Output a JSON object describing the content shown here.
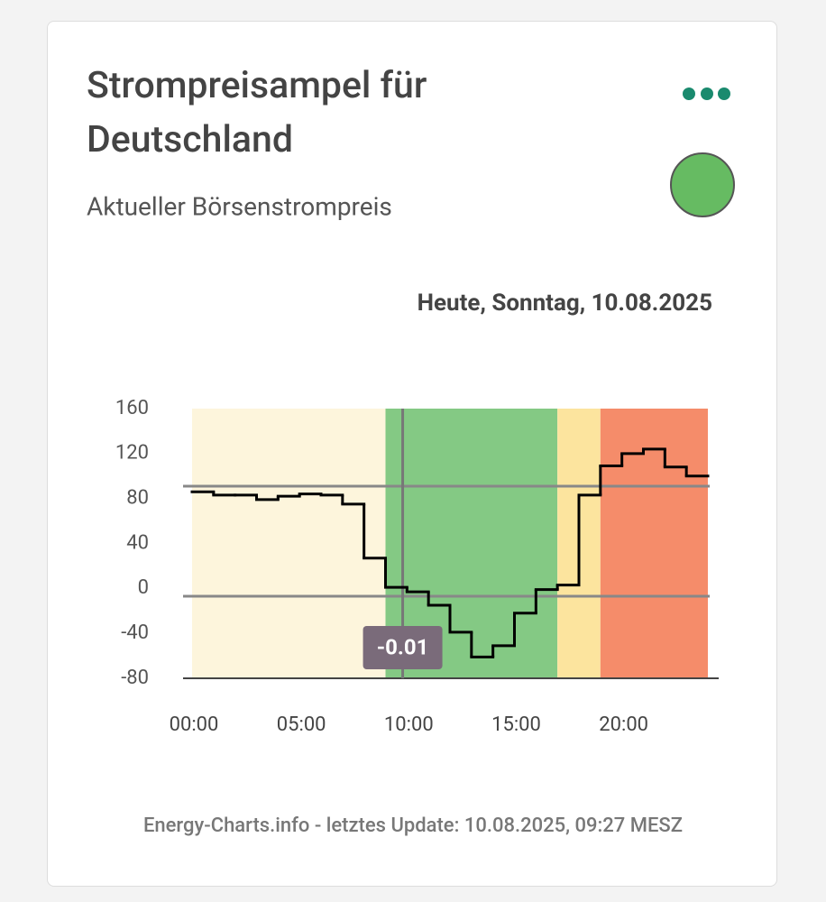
{
  "card": {
    "title_line1": "Strompreisampel für",
    "title_line2": "Deutschland",
    "subtitle": "Aktueller Börsenstrompreis",
    "footer": "Energy-Charts.info - letztes Update: 10.08.2025, 09:27 MESZ"
  },
  "chart_data": {
    "type": "step",
    "subtitle": "Heute, Sonntag, 10.08.2025",
    "x": [
      0,
      1,
      2,
      3,
      4,
      5,
      6,
      7,
      8,
      9,
      10,
      11,
      12,
      13,
      14,
      15,
      16,
      17,
      18,
      19,
      20,
      21,
      22,
      23
    ],
    "series": [
      {
        "color": "#000000",
        "values": [
          86,
          83,
          83,
          79,
          82,
          84,
          83,
          75,
          27,
          1,
          -3,
          -15,
          -39,
          -61,
          -51,
          -22,
          -1,
          3,
          83,
          109,
          120,
          124,
          108,
          100
        ]
      }
    ],
    "xlim": [
      0,
      24
    ],
    "xticks": [
      {
        "value": 0,
        "label": "00:00"
      },
      {
        "value": 5,
        "label": "05:00"
      },
      {
        "value": 10,
        "label": "10:00"
      },
      {
        "value": 15,
        "label": "15:00"
      },
      {
        "value": 20,
        "label": "20:00"
      }
    ],
    "ylim": [
      -80,
      160
    ],
    "yticks": [
      -80,
      -40,
      0,
      40,
      80,
      120,
      160
    ],
    "bands": [
      {
        "from": 0,
        "to": 9,
        "color": "#fdf5dc"
      },
      {
        "from": 9,
        "to": 17,
        "color": "#84c984"
      },
      {
        "from": 17,
        "to": 19,
        "color": "#fce49e"
      },
      {
        "from": 19,
        "to": 24,
        "color": "#f58c6a"
      }
    ],
    "reference_lines": [
      91,
      -7
    ],
    "cursor": {
      "x": 9.8,
      "value": -0.01
    }
  }
}
